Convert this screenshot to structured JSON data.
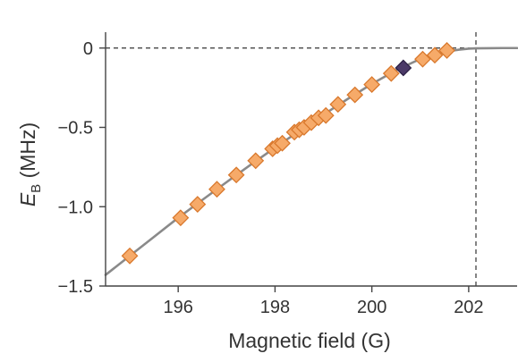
{
  "chart_data": {
    "type": "scatter",
    "xlabel": "Magnetic field (G)",
    "ylabel": {
      "symbol": "E",
      "subscript": "B",
      "unit": " (MHz)"
    },
    "xlim": [
      194.5,
      203.0
    ],
    "ylim": [
      -1.5,
      0.1
    ],
    "x_ticks": [
      196,
      198,
      200,
      202
    ],
    "y_ticks": [
      {
        "value": 0,
        "label": "0"
      },
      {
        "value": -0.5,
        "label": "−0.5"
      },
      {
        "value": -1.0,
        "label": "−1.0"
      },
      {
        "value": -1.5,
        "label": "−1.5"
      }
    ],
    "grid": false,
    "reference_lines": {
      "horizontal_y": 0,
      "vertical_x": 202.15
    },
    "fit_curve": {
      "x": [
        194.5,
        195.0,
        195.5,
        196.0,
        196.5,
        197.0,
        197.5,
        198.0,
        198.5,
        199.0,
        199.5,
        200.0,
        200.5,
        201.0,
        201.5,
        201.8,
        202.0,
        202.15,
        202.4,
        202.7,
        203.0
      ],
      "y": [
        -1.43,
        -1.31,
        -1.19,
        -1.07,
        -0.957,
        -0.845,
        -0.735,
        -0.628,
        -0.523,
        -0.42,
        -0.321,
        -0.226,
        -0.14,
        -0.069,
        -0.025,
        -0.01,
        -0.004,
        -0.002,
        -0.001,
        0.0,
        0.0
      ]
    },
    "series": [
      {
        "marker": "diamond",
        "color": "#f6aa69",
        "edge_color": "#d9782c",
        "points": [
          {
            "x": 195.0,
            "y": -1.31
          },
          {
            "x": 196.05,
            "y": -1.07
          },
          {
            "x": 196.4,
            "y": -0.985
          },
          {
            "x": 196.8,
            "y": -0.89
          },
          {
            "x": 197.2,
            "y": -0.8
          },
          {
            "x": 197.6,
            "y": -0.71
          },
          {
            "x": 197.95,
            "y": -0.635
          },
          {
            "x": 198.05,
            "y": -0.615
          },
          {
            "x": 198.15,
            "y": -0.6
          },
          {
            "x": 198.4,
            "y": -0.53
          },
          {
            "x": 198.5,
            "y": -0.515
          },
          {
            "x": 198.6,
            "y": -0.5
          },
          {
            "x": 198.75,
            "y": -0.47
          },
          {
            "x": 198.9,
            "y": -0.44
          },
          {
            "x": 199.05,
            "y": -0.425
          },
          {
            "x": 199.3,
            "y": -0.355
          },
          {
            "x": 199.65,
            "y": -0.295
          },
          {
            "x": 200.0,
            "y": -0.23
          },
          {
            "x": 200.4,
            "y": -0.16
          },
          {
            "x": 201.05,
            "y": -0.07
          },
          {
            "x": 201.3,
            "y": -0.045
          },
          {
            "x": 201.55,
            "y": -0.015
          }
        ]
      },
      {
        "marker": "diamond",
        "color": "#4b3a68",
        "edge_color": "#2c2045",
        "points": [
          {
            "x": 200.65,
            "y": -0.125
          }
        ]
      }
    ]
  },
  "colors": {
    "axis": "#444444",
    "curve": "#8a8a8a",
    "reference_line": "#333333"
  }
}
